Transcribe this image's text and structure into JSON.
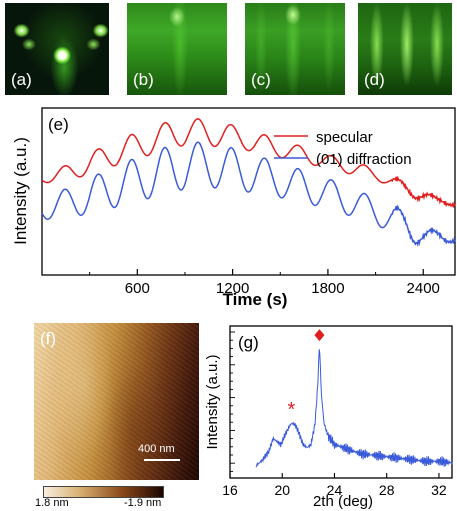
{
  "panels": {
    "a": "(a)",
    "b": "(b)",
    "c": "(c)",
    "d": "(d)",
    "e": "(e)",
    "f": "(f)",
    "g": "(g)"
  },
  "afm": {
    "scale_label": "400 nm",
    "colorbar_min": "1.8 nm",
    "colorbar_max": "-1.9 nm",
    "colors": [
      "#f7efe0",
      "#c48a3a",
      "#6b2d10",
      "#1a0500"
    ]
  },
  "chart_data": [
    {
      "type": "line",
      "panel": "(e)",
      "xlabel": "Time (s)",
      "ylabel": "Intensity (a.u.)",
      "xlim": [
        0,
        2600
      ],
      "xticks": [
        600,
        1200,
        1800,
        2400
      ],
      "x_tick_labels": [
        "600",
        "1200",
        "1800",
        "2400"
      ],
      "legend_position": "top-right",
      "series": [
        {
          "name": "specular",
          "color": "#e02020",
          "x": [
            0,
            200,
            320,
            440,
            560,
            680,
            800,
            920,
            1040,
            1160,
            1280,
            1400,
            1520,
            1640,
            1760,
            1880,
            2000,
            2100,
            2200,
            2300,
            2350,
            2420,
            2500,
            2600
          ],
          "y": [
            0.58,
            0.62,
            0.68,
            0.72,
            0.76,
            0.8,
            0.84,
            0.86,
            0.85,
            0.84,
            0.81,
            0.78,
            0.75,
            0.72,
            0.69,
            0.66,
            0.63,
            0.6,
            0.56,
            0.52,
            0.48,
            0.47,
            0.45,
            0.42
          ],
          "amplitude": [
            0.03,
            0.05,
            0.06,
            0.07,
            0.08,
            0.08,
            0.08,
            0.08,
            0.08,
            0.07,
            0.06,
            0.06,
            0.05,
            0.05,
            0.04,
            0.04,
            0.04,
            0.03,
            0.03,
            0.03,
            0.02,
            0.02,
            0.01,
            0.01
          ]
        },
        {
          "name": "(01) diffraction",
          "color": "#3a5bd9",
          "x": [
            0,
            200,
            320,
            440,
            560,
            680,
            800,
            920,
            1040,
            1160,
            1280,
            1400,
            1520,
            1640,
            1760,
            1880,
            2000,
            2100,
            2200,
            2300,
            2350,
            2420,
            2500,
            2600
          ],
          "y": [
            0.4,
            0.44,
            0.48,
            0.52,
            0.56,
            0.6,
            0.63,
            0.66,
            0.66,
            0.64,
            0.62,
            0.59,
            0.56,
            0.53,
            0.5,
            0.46,
            0.42,
            0.38,
            0.34,
            0.3,
            0.25,
            0.22,
            0.24,
            0.21
          ],
          "amplitude": [
            0.07,
            0.09,
            0.11,
            0.12,
            0.13,
            0.14,
            0.14,
            0.14,
            0.13,
            0.13,
            0.12,
            0.11,
            0.1,
            0.1,
            0.09,
            0.09,
            0.08,
            0.08,
            0.08,
            0.07,
            0.06,
            0.05,
            0.03,
            0.02
          ]
        }
      ],
      "oscillation_period_s": 210
    },
    {
      "type": "line",
      "panel": "(g)",
      "xlabel": "2th (deg)",
      "ylabel": "Intensity (a.u.)",
      "xlim": [
        16,
        33
      ],
      "xticks": [
        16,
        20,
        24,
        28,
        32
      ],
      "x_tick_labels": [
        "16",
        "20",
        "24",
        "28",
        "32"
      ],
      "series": [
        {
          "name": "",
          "color": "#3a5bd9",
          "x": [
            18.0,
            18.5,
            19.0,
            19.3,
            19.6,
            19.9,
            20.3,
            20.7,
            21.0,
            21.3,
            21.6,
            21.9,
            22.2,
            22.5,
            22.7,
            22.85,
            23.0,
            23.2,
            23.5,
            24.0,
            25.0,
            26.0,
            27.0,
            28.0,
            29.0,
            30.0,
            31.0,
            32.0,
            33.0
          ],
          "y": [
            0.08,
            0.12,
            0.18,
            0.26,
            0.24,
            0.22,
            0.3,
            0.36,
            0.35,
            0.29,
            0.22,
            0.2,
            0.22,
            0.35,
            0.58,
            0.88,
            0.55,
            0.36,
            0.28,
            0.22,
            0.19,
            0.16,
            0.15,
            0.14,
            0.13,
            0.12,
            0.11,
            0.11,
            0.1
          ]
        }
      ],
      "annotations": [
        {
          "symbol": "*",
          "x": 20.7,
          "y": 0.46,
          "color": "#e02020"
        },
        {
          "symbol": "diamond",
          "x": 22.85,
          "y": 0.94,
          "color": "#e02020"
        }
      ]
    }
  ]
}
